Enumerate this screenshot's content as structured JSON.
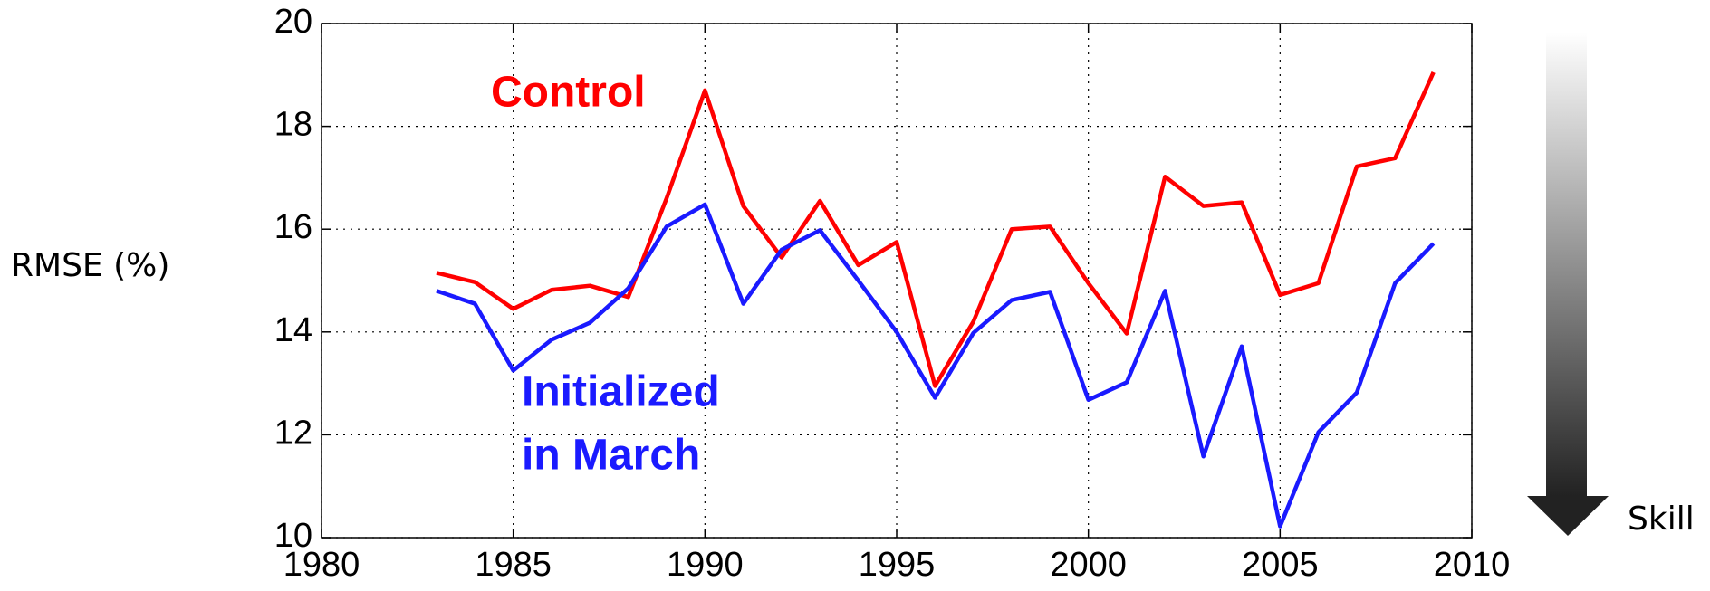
{
  "chart_data": {
    "type": "line",
    "ylabel": "RMSE (%)",
    "arrow_label": "Skill",
    "x": [
      1983,
      1984,
      1985,
      1986,
      1987,
      1988,
      1989,
      1990,
      1991,
      1992,
      1993,
      1994,
      1995,
      1996,
      1997,
      1998,
      1999,
      2000,
      2001,
      2002,
      2003,
      2004,
      2005,
      2006,
      2007,
      2008,
      2009
    ],
    "series": [
      {
        "name": "Control",
        "color": "#ff0000",
        "values": [
          15.15,
          14.97,
          14.45,
          14.82,
          14.9,
          14.68,
          16.6,
          18.7,
          16.45,
          15.45,
          16.55,
          15.3,
          15.75,
          12.95,
          14.2,
          16.0,
          16.05,
          14.95,
          13.97,
          17.02,
          16.45,
          16.52,
          14.72,
          14.95,
          17.22,
          17.38,
          19.05
        ]
      },
      {
        "name": "Initialized in March",
        "color": "#1a1aff",
        "label_lines": [
          "Initialized",
          "in March"
        ],
        "values": [
          14.8,
          14.55,
          13.25,
          13.85,
          14.18,
          14.85,
          16.05,
          16.48,
          14.55,
          15.6,
          15.98,
          15.0,
          14.0,
          12.72,
          13.98,
          14.62,
          14.78,
          12.68,
          13.02,
          14.8,
          11.58,
          13.72,
          10.22,
          12.05,
          12.82,
          14.95,
          15.72
        ]
      }
    ],
    "xlim": [
      1980,
      2010
    ],
    "xticks": [
      1980,
      1985,
      1990,
      1995,
      2000,
      2005,
      2010
    ],
    "ylim": [
      10,
      20
    ],
    "yticks": [
      10,
      12,
      14,
      16,
      18,
      20
    ],
    "grid": true
  }
}
